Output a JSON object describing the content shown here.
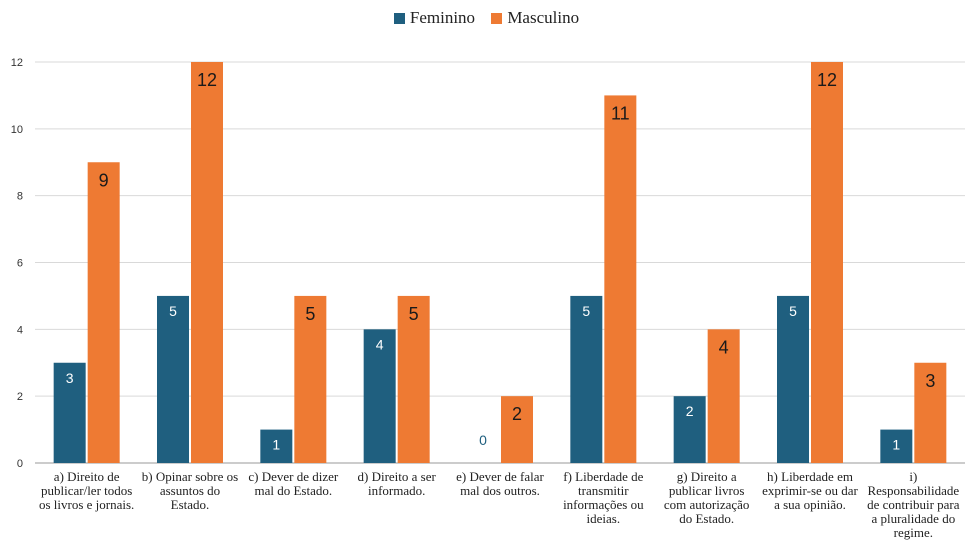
{
  "chart_data": {
    "type": "bar",
    "title": "",
    "xlabel": "",
    "ylabel": "",
    "ylim": [
      0,
      12
    ],
    "yticks": [
      "0",
      "2",
      "4",
      "6",
      "8",
      "10",
      "12"
    ],
    "grid": true,
    "legend_position": "top-center",
    "categories": [
      "a) Direito de publicar/ler todos os livros e jornais.",
      "b) Opinar sobre os assuntos do Estado.",
      "c) Dever de dizer mal do Estado.",
      "d) Direito a ser informado.",
      "e) Dever de falar mal dos outros.",
      "f) Liberdade de transmitir informações ou ideias.",
      "g) Direito a publicar livros com autorização do Estado.",
      "h) Liberdade em exprimir-se ou dar a sua opinião.",
      "i) Responsabilidade de contribuir para a pluralidade do regime."
    ],
    "series": [
      {
        "name": "Feminino",
        "color": "#1f5f7f",
        "values": [
          3,
          5,
          1,
          4,
          0,
          5,
          2,
          5,
          1
        ]
      },
      {
        "name": "Masculino",
        "color": "#ee7a33",
        "values": [
          9,
          12,
          5,
          5,
          2,
          11,
          4,
          12,
          3
        ]
      }
    ]
  }
}
